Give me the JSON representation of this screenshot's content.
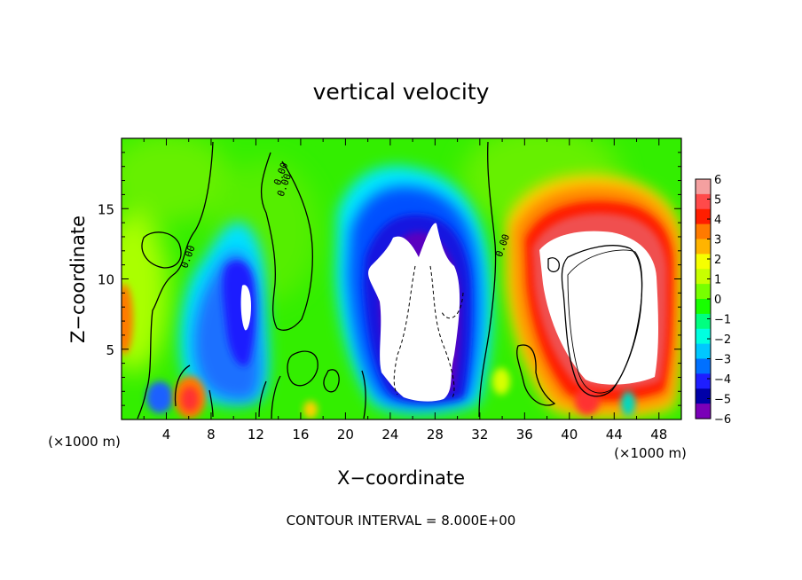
{
  "chart_data": {
    "type": "heatmap",
    "title": "vertical velocity",
    "xlabel": "X−coordinate",
    "ylabel": "Z−coordinate",
    "x_multiplier_label": "(×1000 m)",
    "y_multiplier_label": "(×1000 m)",
    "footer": "CONTOUR INTERVAL = 8.000E+00",
    "xlim": [
      0,
      50
    ],
    "ylim": [
      0,
      20
    ],
    "x_ticks": [
      4,
      8,
      12,
      16,
      20,
      24,
      28,
      32,
      36,
      40,
      44,
      48
    ],
    "y_ticks": [
      5,
      10,
      15
    ],
    "colorbar": {
      "levels": [
        6,
        5,
        4,
        3,
        2,
        1,
        0,
        -1,
        -2,
        -3,
        -4,
        -5,
        -6
      ],
      "tick_labels": [
        "6",
        "5",
        "4",
        "3",
        "2",
        "1",
        "0",
        "−1",
        "−2",
        "−3",
        "−4",
        "−5",
        "−6"
      ],
      "colors": [
        "#f4a0a0",
        "#ff4a4a",
        "#ff1e00",
        "#ff7a00",
        "#ffb400",
        "#f6ff00",
        "#c8ff00",
        "#78ff00",
        "#18ff00",
        "#00ff80",
        "#00ffe0",
        "#00c8ff",
        "#0070ff",
        "#1e1eff",
        "#0000a8",
        "#7a00b8"
      ]
    },
    "contour_labels": [
      "0.00",
      "0.00",
      "0.00",
      "0.00"
    ],
    "features": [
      {
        "kind": "downdraft",
        "x": 11,
        "z": 8.5,
        "rx": 3.5,
        "rz": 5.5,
        "value": -5
      },
      {
        "kind": "downdraft",
        "x": 27.5,
        "z": 9,
        "rx": 5.5,
        "rz": 8,
        "value": -6
      },
      {
        "kind": "updraft",
        "x": 43.5,
        "z": 10,
        "rx": 6,
        "rz": 7,
        "value": 6
      },
      {
        "kind": "updraft",
        "x": 6,
        "z": 1.3,
        "rx": 1.3,
        "rz": 1.5,
        "value": 5
      },
      {
        "kind": "updraft",
        "x": 0.3,
        "z": 6,
        "rx": 0.8,
        "rz": 4,
        "value": 4
      },
      {
        "kind": "downdraft",
        "x": 3.5,
        "z": 1.8,
        "rx": 0.9,
        "rz": 1.1,
        "value": -5
      }
    ]
  }
}
